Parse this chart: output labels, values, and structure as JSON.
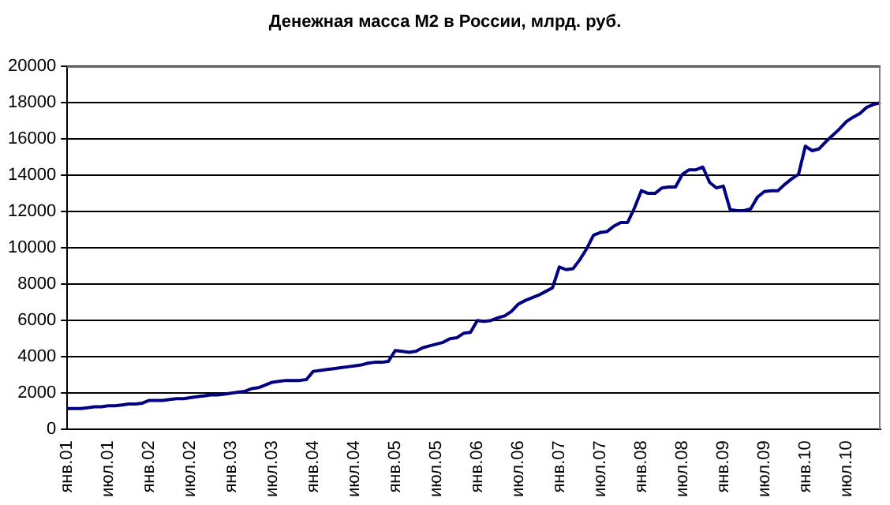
{
  "chart_data": {
    "type": "line",
    "title": "Денежная масса М2 в России, млрд. руб.",
    "categories": [
      "янв.01",
      null,
      null,
      null,
      null,
      null,
      "июл.01",
      null,
      null,
      null,
      null,
      null,
      "янв.02",
      null,
      null,
      null,
      null,
      null,
      "июл.02",
      null,
      null,
      null,
      null,
      null,
      "янв.03",
      null,
      null,
      null,
      null,
      null,
      "июл.03",
      null,
      null,
      null,
      null,
      null,
      "янв.04",
      null,
      null,
      null,
      null,
      null,
      "июл.04",
      null,
      null,
      null,
      null,
      null,
      "янв.05",
      null,
      null,
      null,
      null,
      null,
      "июл.05",
      null,
      null,
      null,
      null,
      null,
      "янв.06",
      null,
      null,
      null,
      null,
      null,
      "июл.06",
      null,
      null,
      null,
      null,
      null,
      "янв.07",
      null,
      null,
      null,
      null,
      null,
      "июл.07",
      null,
      null,
      null,
      null,
      null,
      "янв.08",
      null,
      null,
      null,
      null,
      null,
      "июл.08",
      null,
      null,
      null,
      null,
      null,
      "янв.09",
      null,
      null,
      null,
      null,
      null,
      "июл.09",
      null,
      null,
      null,
      null,
      null,
      "янв.10",
      null,
      null,
      null,
      null,
      null,
      "июл.10",
      null,
      null,
      null,
      null,
      null
    ],
    "series": [
      {
        "color": "#000080",
        "values": [
          1150,
          1150,
          1150,
          1200,
          1250,
          1250,
          1300,
          1300,
          1350,
          1400,
          1400,
          1450,
          1600,
          1600,
          1600,
          1650,
          1700,
          1700,
          1750,
          1800,
          1850,
          1900,
          1900,
          1950,
          2000,
          2050,
          2100,
          2250,
          2300,
          2450,
          2600,
          2650,
          2700,
          2700,
          2700,
          2750,
          3200,
          3250,
          3300,
          3350,
          3400,
          3450,
          3500,
          3550,
          3650,
          3700,
          3700,
          3750,
          4350,
          4300,
          4250,
          4300,
          4500,
          4600,
          4700,
          4800,
          5000,
          5050,
          5300,
          5350,
          6000,
          5950,
          6000,
          6150,
          6250,
          6500,
          6900,
          7100,
          7250,
          7400,
          7600,
          7800,
          8950,
          8800,
          8850,
          9350,
          9950,
          10700,
          10850,
          10900,
          11200,
          11400,
          11400,
          12200,
          13150,
          13000,
          13000,
          13300,
          13350,
          13350,
          14050,
          14300,
          14300,
          14450,
          13600,
          13300,
          13400,
          12100,
          12050,
          12050,
          12150,
          12800,
          13100,
          13150,
          13150,
          13500,
          13800,
          14050,
          15600,
          15350,
          15450,
          15850,
          16200,
          16550,
          16950,
          17200,
          17400,
          17750,
          17900,
          18000
        ]
      }
    ],
    "ylim": [
      0,
      20000
    ],
    "yticks": [
      0,
      2000,
      4000,
      6000,
      8000,
      10000,
      12000,
      14000,
      16000,
      18000,
      20000
    ],
    "grid": "y",
    "marker": "none",
    "line_style": "solid"
  }
}
